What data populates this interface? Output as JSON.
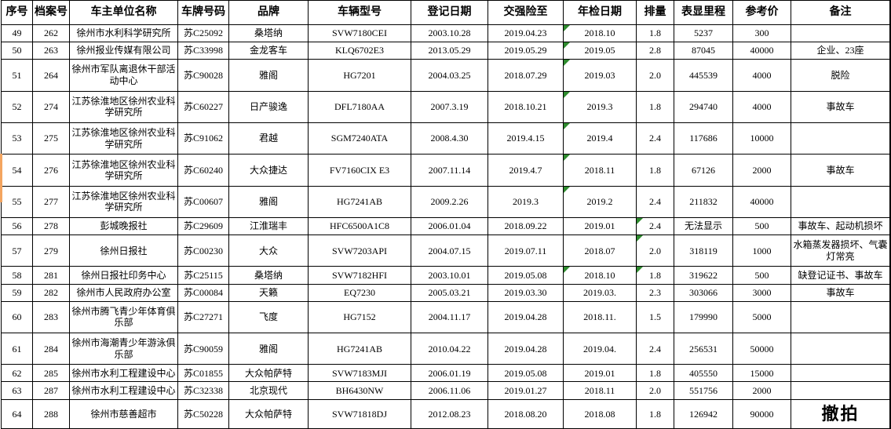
{
  "colors": {
    "error_indicator_green": "#2e8b2e",
    "left_marker_orange": "#f4a560",
    "grid_border": "#000000",
    "background": "#ffffff"
  },
  "table": {
    "headers": [
      "序号",
      "档案号",
      "车主单位名称",
      "车牌号码",
      "品牌",
      "车辆型号",
      "登记日期",
      "交强险至",
      "年检日期",
      "排量",
      "表显里程",
      "参考价",
      "备注"
    ],
    "column_keys": [
      "seq",
      "file-no",
      "owner",
      "plate",
      "brand",
      "model",
      "reg-date",
      "insurance-to",
      "inspection-date",
      "displacement",
      "mileage",
      "ref-price",
      "remark"
    ],
    "rows": [
      {
        "cells": [
          "49",
          "262",
          "徐州市水利科学研究所",
          "苏C25092",
          "桑塔纳",
          "SVW7180CEI",
          "2003.10.28",
          "2019.04.23",
          "2018.10",
          "1.8",
          "5237",
          "300",
          ""
        ],
        "inspection_mark": true,
        "displacement_mark": false,
        "remark_large": false
      },
      {
        "cells": [
          "50",
          "263",
          "徐州报业传媒有限公司",
          "苏C33998",
          "金龙客车",
          "KLQ6702E3",
          "2013.05.29",
          "2019.05.29",
          "2019.05",
          "2.8",
          "87045",
          "40000",
          "企业、23座"
        ],
        "inspection_mark": true,
        "displacement_mark": false,
        "remark_large": false
      },
      {
        "cells": [
          "51",
          "264",
          "徐州市军队离退休干部活动中心",
          "苏C90028",
          "雅阁",
          "HG7201",
          "2004.03.25",
          "2018.07.29",
          "2019.03",
          "2.0",
          "445539",
          "4000",
          "脱险"
        ],
        "inspection_mark": true,
        "displacement_mark": false,
        "remark_large": false
      },
      {
        "cells": [
          "52",
          "274",
          "江苏徐淮地区徐州农业科学研究所",
          "苏C60227",
          "日产骏逸",
          "DFL7180AA",
          "2007.3.19",
          "2018.10.21",
          "2019.3",
          "1.8",
          "294740",
          "4000",
          "事故车"
        ],
        "inspection_mark": true,
        "displacement_mark": false,
        "remark_large": false
      },
      {
        "cells": [
          "53",
          "275",
          "江苏徐淮地区徐州农业科学研究所",
          "苏C91062",
          "君越",
          "SGM7240ATA",
          "2008.4.30",
          "2019.4.15",
          "2019.4",
          "2.4",
          "117686",
          "10000",
          ""
        ],
        "inspection_mark": true,
        "displacement_mark": false,
        "remark_large": false
      },
      {
        "cells": [
          "54",
          "276",
          "江苏徐淮地区徐州农业科学研究所",
          "苏C60240",
          "大众捷达",
          "FV7160CIX E3",
          "2007.11.14",
          "2019.4.7",
          "2018.11",
          "1.8",
          "67126",
          "2000",
          "事故车"
        ],
        "inspection_mark": true,
        "displacement_mark": false,
        "remark_large": false
      },
      {
        "cells": [
          "55",
          "277",
          "江苏徐淮地区徐州农业科学研究所",
          "苏C00607",
          "雅阁",
          "HG7241AB",
          "2009.2.26",
          "2019.3",
          "2019.2",
          "2.4",
          "211832",
          "40000",
          ""
        ],
        "inspection_mark": true,
        "displacement_mark": false,
        "remark_large": false
      },
      {
        "cells": [
          "56",
          "278",
          "彭城晚报社",
          "苏C29609",
          "江淮瑞丰",
          "HFC6500A1C8",
          "2006.01.04",
          "2018.09.22",
          "2019.01",
          "2.4",
          "无法显示",
          "500",
          "事故车、起动机损坏"
        ],
        "inspection_mark": false,
        "displacement_mark": true,
        "remark_large": false
      },
      {
        "cells": [
          "57",
          "279",
          "徐州日报社",
          "苏C00230",
          "大众",
          "SVW7203API",
          "2004.07.15",
          "2019.07.11",
          "2018.07",
          "2.0",
          "318119",
          "1000",
          "水箱蒸发器损坏、气囊灯常亮"
        ],
        "inspection_mark": false,
        "displacement_mark": true,
        "remark_large": false
      },
      {
        "cells": [
          "58",
          "281",
          "徐州日报社印务中心",
          "苏C25115",
          "桑塔纳",
          "SVW7182HFI",
          "2003.10.01",
          "2019.05.08",
          "2018.10",
          "1.8",
          "319622",
          "500",
          "缺登记证书、事故车"
        ],
        "inspection_mark": true,
        "displacement_mark": true,
        "remark_large": false
      },
      {
        "cells": [
          "59",
          "282",
          "徐州市人民政府办公室",
          "苏C00084",
          "天籁",
          "EQ7230",
          "2005.03.21",
          "2019.03.30",
          "2019.03.",
          "2.3",
          "303066",
          "3000",
          "事故车"
        ],
        "inspection_mark": false,
        "displacement_mark": false,
        "remark_large": false
      },
      {
        "cells": [
          "60",
          "283",
          "徐州市腾飞青少年体育俱乐部",
          "苏C27271",
          "飞度",
          "HG7152",
          "2004.11.17",
          "2019.04.28",
          "2018.11.",
          "1.5",
          "179990",
          "5000",
          ""
        ],
        "inspection_mark": false,
        "displacement_mark": false,
        "remark_large": false
      },
      {
        "cells": [
          "61",
          "284",
          "徐州市海潮青少年游泳俱乐部",
          "苏C90059",
          "雅阁",
          "HG7241AB",
          "2010.04.22",
          "2019.04.28",
          "2019.04.",
          "2.4",
          "256531",
          "50000",
          ""
        ],
        "inspection_mark": false,
        "displacement_mark": false,
        "remark_large": false
      },
      {
        "cells": [
          "62",
          "285",
          "徐州市水利工程建设中心",
          "苏C01855",
          "大众帕萨特",
          "SVW7183MJI",
          "2006.01.19",
          "2019.05.08",
          "2019.01",
          "1.8",
          "405550",
          "15000",
          ""
        ],
        "inspection_mark": false,
        "displacement_mark": false,
        "remark_large": false
      },
      {
        "cells": [
          "63",
          "287",
          "徐州市水利工程建设中心",
          "苏C32338",
          "北京现代",
          "BH6430NW",
          "2006.11.06",
          "2019.01.27",
          "2018.11",
          "2.0",
          "551756",
          "2000",
          ""
        ],
        "inspection_mark": false,
        "displacement_mark": false,
        "remark_large": false
      },
      {
        "cells": [
          "64",
          "288",
          "徐州市慈善超市",
          "苏C50228",
          "大众帕萨特",
          "SVW71818DJ",
          "2012.08.23",
          "2018.08.20",
          "2018.08",
          "1.8",
          "126942",
          "90000",
          "撤拍"
        ],
        "inspection_mark": false,
        "displacement_mark": false,
        "remark_large": true
      }
    ]
  }
}
